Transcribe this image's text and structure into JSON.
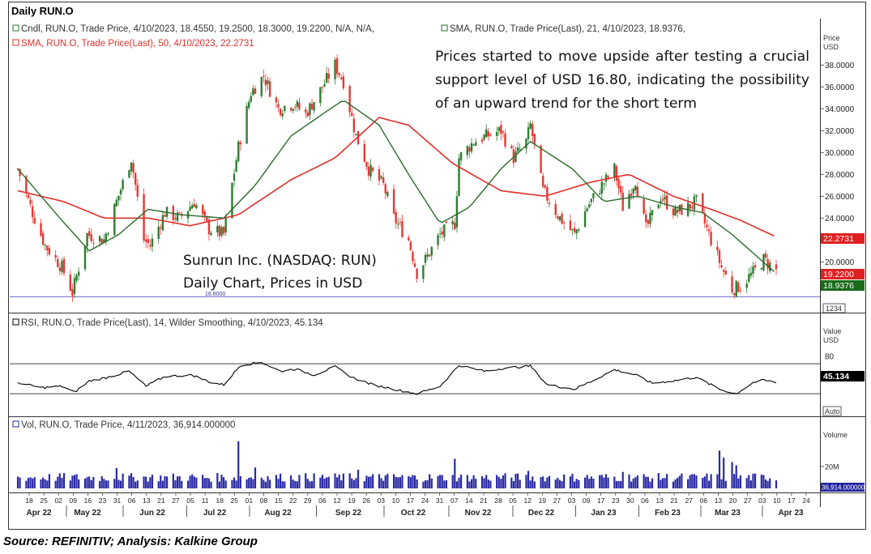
{
  "chart_data": [
    {
      "type": "candlestick",
      "title": "Daily RUN.O",
      "legend": {
        "candles": "Cndl, RUN.O, Trade Price, 4/10/2023, 18.4550, 19.2500, 18.3000, 19.2200, N/A, N/A,",
        "sma21": "SMA, RUN.O, Trade Price(Last),  21, 4/10/2023, 18.9376,",
        "sma50": "SMA, RUN.O, Trade Price(Last),  50, 4/10/2023, 22.2731"
      },
      "colors": {
        "up": "#2e7d32",
        "down": "#e53935",
        "sma21": "#2b6b2b",
        "sma50": "#e0302a",
        "support": "#7b7bd0"
      },
      "y_axis_title": "Price",
      "y_axis_unit": "USD",
      "yticks": [
        "38.0000",
        "36.0000",
        "34.0000",
        "32.0000",
        "30.0000",
        "28.0000",
        "26.0000",
        "24.0000",
        "20.0000"
      ],
      "ylim": [
        15.5,
        39.5
      ],
      "support_level": {
        "value": 16.8,
        "label": "16.8000"
      },
      "last_value_tags": [
        {
          "value": 22.2731,
          "label": "22.2731",
          "color": "#e02020"
        },
        {
          "value": 19.22,
          "label": "19.2200",
          "color": "#e02020"
        },
        {
          "value": 18.9376,
          "label": "18.9376",
          "color": "#1a6b1a"
        }
      ],
      "annotations": [
        "Prices started to move upside after testing a crucial support level of USD 16.80, indicating the possibility of an upward trend for the short term",
        "Sunrun Inc. (NASDAQ: RUN) Daily Chart, Prices in USD"
      ],
      "counter": "1234",
      "close_path": [
        [
          "2022-04-14",
          28.5
        ],
        [
          "2022-04-21",
          24.5
        ],
        [
          "2022-04-27",
          21.5
        ],
        [
          "2022-05-05",
          19.5
        ],
        [
          "2022-05-10",
          17.2
        ],
        [
          "2022-05-17",
          22.5
        ],
        [
          "2022-05-25",
          22.0
        ],
        [
          "2022-05-31",
          25.5
        ],
        [
          "2022-06-07",
          29.5
        ],
        [
          "2022-06-13",
          22.0
        ],
        [
          "2022-06-16",
          21.5
        ],
        [
          "2022-06-23",
          24.5
        ],
        [
          "2022-06-30",
          24.0
        ],
        [
          "2022-07-07",
          25.5
        ],
        [
          "2022-07-14",
          23.0
        ],
        [
          "2022-07-21",
          22.5
        ],
        [
          "2022-07-28",
          30.5
        ],
        [
          "2022-08-03",
          35.5
        ],
        [
          "2022-08-09",
          37.0
        ],
        [
          "2022-08-16",
          34.0
        ],
        [
          "2022-08-23",
          34.5
        ],
        [
          "2022-08-29",
          33.5
        ],
        [
          "2022-09-06",
          36.0
        ],
        [
          "2022-09-12",
          38.0
        ],
        [
          "2022-09-16",
          36.5
        ],
        [
          "2022-09-22",
          31.5
        ],
        [
          "2022-09-28",
          28.5
        ],
        [
          "2022-10-05",
          27.0
        ],
        [
          "2022-10-10",
          24.0
        ],
        [
          "2022-10-17",
          22.0
        ],
        [
          "2022-10-21",
          19.0
        ],
        [
          "2022-10-26",
          20.5
        ],
        [
          "2022-11-01",
          22.5
        ],
        [
          "2022-11-08",
          23.5
        ],
        [
          "2022-11-10",
          29.5
        ],
        [
          "2022-11-17",
          31.0
        ],
        [
          "2022-11-23",
          31.5
        ],
        [
          "2022-11-30",
          32.0
        ],
        [
          "2022-12-06",
          29.5
        ],
        [
          "2022-12-12",
          31.0
        ],
        [
          "2022-12-14",
          32.5
        ],
        [
          "2022-12-20",
          26.5
        ],
        [
          "2022-12-28",
          24.0
        ],
        [
          "2023-01-04",
          22.5
        ],
        [
          "2023-01-10",
          25.0
        ],
        [
          "2023-01-17",
          27.0
        ],
        [
          "2023-01-23",
          28.5
        ],
        [
          "2023-01-27",
          25.0
        ],
        [
          "2023-02-02",
          27.5
        ],
        [
          "2023-02-07",
          23.0
        ],
        [
          "2023-02-14",
          26.0
        ],
        [
          "2023-02-21",
          24.5
        ],
        [
          "2023-02-27",
          25.0
        ],
        [
          "2023-03-03",
          25.5
        ],
        [
          "2023-03-09",
          22.5
        ],
        [
          "2023-03-15",
          19.5
        ],
        [
          "2023-03-20",
          17.5
        ],
        [
          "2023-03-24",
          17.8
        ],
        [
          "2023-03-30",
          19.0
        ],
        [
          "2023-04-04",
          20.2
        ],
        [
          "2023-04-10",
          19.22
        ]
      ],
      "sma21_path": [
        [
          "2022-04-14",
          28.5
        ],
        [
          "2022-05-04",
          24.0
        ],
        [
          "2022-05-18",
          21.0
        ],
        [
          "2022-06-01",
          22.5
        ],
        [
          "2022-06-15",
          24.8
        ],
        [
          "2022-07-01",
          24.3
        ],
        [
          "2022-07-21",
          24.0
        ],
        [
          "2022-08-05",
          27.0
        ],
        [
          "2022-08-22",
          31.5
        ],
        [
          "2022-09-06",
          33.5
        ],
        [
          "2022-09-16",
          34.8
        ],
        [
          "2022-10-03",
          32.5
        ],
        [
          "2022-10-17",
          28.0
        ],
        [
          "2022-11-01",
          23.5
        ],
        [
          "2022-11-15",
          25.0
        ],
        [
          "2022-11-30",
          28.5
        ],
        [
          "2022-12-14",
          31.0
        ],
        [
          "2023-01-03",
          28.5
        ],
        [
          "2023-01-18",
          25.5
        ],
        [
          "2023-02-03",
          26.0
        ],
        [
          "2023-02-21",
          25.0
        ],
        [
          "2023-03-06",
          24.5
        ],
        [
          "2023-03-20",
          22.5
        ],
        [
          "2023-04-10",
          18.9376
        ]
      ],
      "sma50_path": [
        [
          "2022-04-14",
          26.5
        ],
        [
          "2022-05-06",
          25.5
        ],
        [
          "2022-05-25",
          24.0
        ],
        [
          "2022-06-15",
          24.0
        ],
        [
          "2022-07-05",
          23.3
        ],
        [
          "2022-07-28",
          24.3
        ],
        [
          "2022-08-22",
          27.5
        ],
        [
          "2022-09-12",
          29.5
        ],
        [
          "2022-10-03",
          33.2
        ],
        [
          "2022-10-17",
          32.5
        ],
        [
          "2022-11-07",
          29.0
        ],
        [
          "2022-11-30",
          26.5
        ],
        [
          "2022-12-21",
          26.0
        ],
        [
          "2023-01-12",
          27.3
        ],
        [
          "2023-01-30",
          28.0
        ],
        [
          "2023-02-20",
          26.0
        ],
        [
          "2023-03-10",
          24.8
        ],
        [
          "2023-03-24",
          23.8
        ],
        [
          "2023-04-10",
          22.2731
        ]
      ]
    },
    {
      "type": "line",
      "legend": "RSI, RUN.O, Trade Price(Last),  14, Wilder Smoothing, 4/10/2023, 45.134",
      "y_axis_title": "Value",
      "y_axis_unit": "USD",
      "yticks": [
        "80"
      ],
      "ylim": [
        15,
        95
      ],
      "reference_lines": [
        70,
        30
      ],
      "last_value": {
        "value": 45.134,
        "label": "45.134"
      },
      "auto_label": "Auto",
      "series": [
        [
          "2022-04-14",
          45
        ],
        [
          "2022-04-25",
          38
        ],
        [
          "2022-05-05",
          40
        ],
        [
          "2022-05-11",
          32
        ],
        [
          "2022-05-18",
          47
        ],
        [
          "2022-05-27",
          52
        ],
        [
          "2022-06-06",
          60
        ],
        [
          "2022-06-14",
          40
        ],
        [
          "2022-06-23",
          53
        ],
        [
          "2022-07-06",
          55
        ],
        [
          "2022-07-15",
          45
        ],
        [
          "2022-07-21",
          42
        ],
        [
          "2022-07-29",
          68
        ],
        [
          "2022-08-08",
          72
        ],
        [
          "2022-08-17",
          60
        ],
        [
          "2022-08-24",
          63
        ],
        [
          "2022-09-02",
          55
        ],
        [
          "2022-09-12",
          66
        ],
        [
          "2022-09-20",
          52
        ],
        [
          "2022-09-30",
          42
        ],
        [
          "2022-10-12",
          35
        ],
        [
          "2022-10-21",
          30
        ],
        [
          "2022-11-01",
          40
        ],
        [
          "2022-11-10",
          68
        ],
        [
          "2022-11-22",
          60
        ],
        [
          "2022-12-01",
          64
        ],
        [
          "2022-12-14",
          67
        ],
        [
          "2022-12-22",
          42
        ],
        [
          "2023-01-04",
          36
        ],
        [
          "2023-01-13",
          48
        ],
        [
          "2023-01-23",
          62
        ],
        [
          "2023-02-02",
          55
        ],
        [
          "2023-02-10",
          44
        ],
        [
          "2023-02-22",
          48
        ],
        [
          "2023-03-03",
          52
        ],
        [
          "2023-03-14",
          36
        ],
        [
          "2023-03-22",
          30
        ],
        [
          "2023-03-30",
          45
        ],
        [
          "2023-04-04",
          48
        ],
        [
          "2023-04-10",
          45.134
        ]
      ]
    },
    {
      "type": "bar",
      "legend": "Vol, RUN.O, Trade Price, 4/11/2023, 36,914.000000",
      "y_axis_title": "Volume",
      "yticks": [
        "20M"
      ],
      "ylim": [
        0,
        48000000
      ],
      "last_value": {
        "value": 36914,
        "label": "36,914.000000"
      },
      "color": "#2a2aa5",
      "typical_range": [
        6000000,
        14000000
      ],
      "spikes": [
        [
          "2022-05-31",
          18500000
        ],
        [
          "2022-07-28",
          43000000
        ],
        [
          "2022-08-05",
          19000000
        ],
        [
          "2022-09-23",
          17000000
        ],
        [
          "2022-11-08",
          27000000
        ],
        [
          "2022-12-13",
          16000000
        ],
        [
          "2023-01-27",
          15000000
        ],
        [
          "2023-03-14",
          34500000
        ],
        [
          "2023-03-16",
          28000000
        ],
        [
          "2023-03-20",
          24000000
        ],
        [
          "2023-03-22",
          21000000
        ]
      ]
    }
  ],
  "x_axis": {
    "day_ticks": [
      "18",
      "25",
      "02",
      "09",
      "16",
      "23",
      "31",
      "06",
      "13",
      "21",
      "27",
      "05",
      "11",
      "18",
      "25",
      "01",
      "08",
      "15",
      "22",
      "29",
      "06",
      "12",
      "19",
      "26",
      "03",
      "10",
      "17",
      "24",
      "31",
      "07",
      "14",
      "21",
      "28",
      "05",
      "12",
      "19",
      "27",
      "03",
      "09",
      "17",
      "23",
      "30",
      "06",
      "13",
      "21",
      "27",
      "06",
      "13",
      "20",
      "27",
      "03",
      "10",
      "17",
      "24"
    ],
    "months": [
      "Apr 22",
      "May 22",
      "Jun 22",
      "Jul 22",
      "Aug 22",
      "Sep 22",
      "Oct 22",
      "Nov 22",
      "Dec 22",
      "Jan 23",
      "Feb 23",
      "Mar 23",
      "Apr 23"
    ]
  },
  "source": "Source: REFINITIV; Analysis: Kalkine Group"
}
